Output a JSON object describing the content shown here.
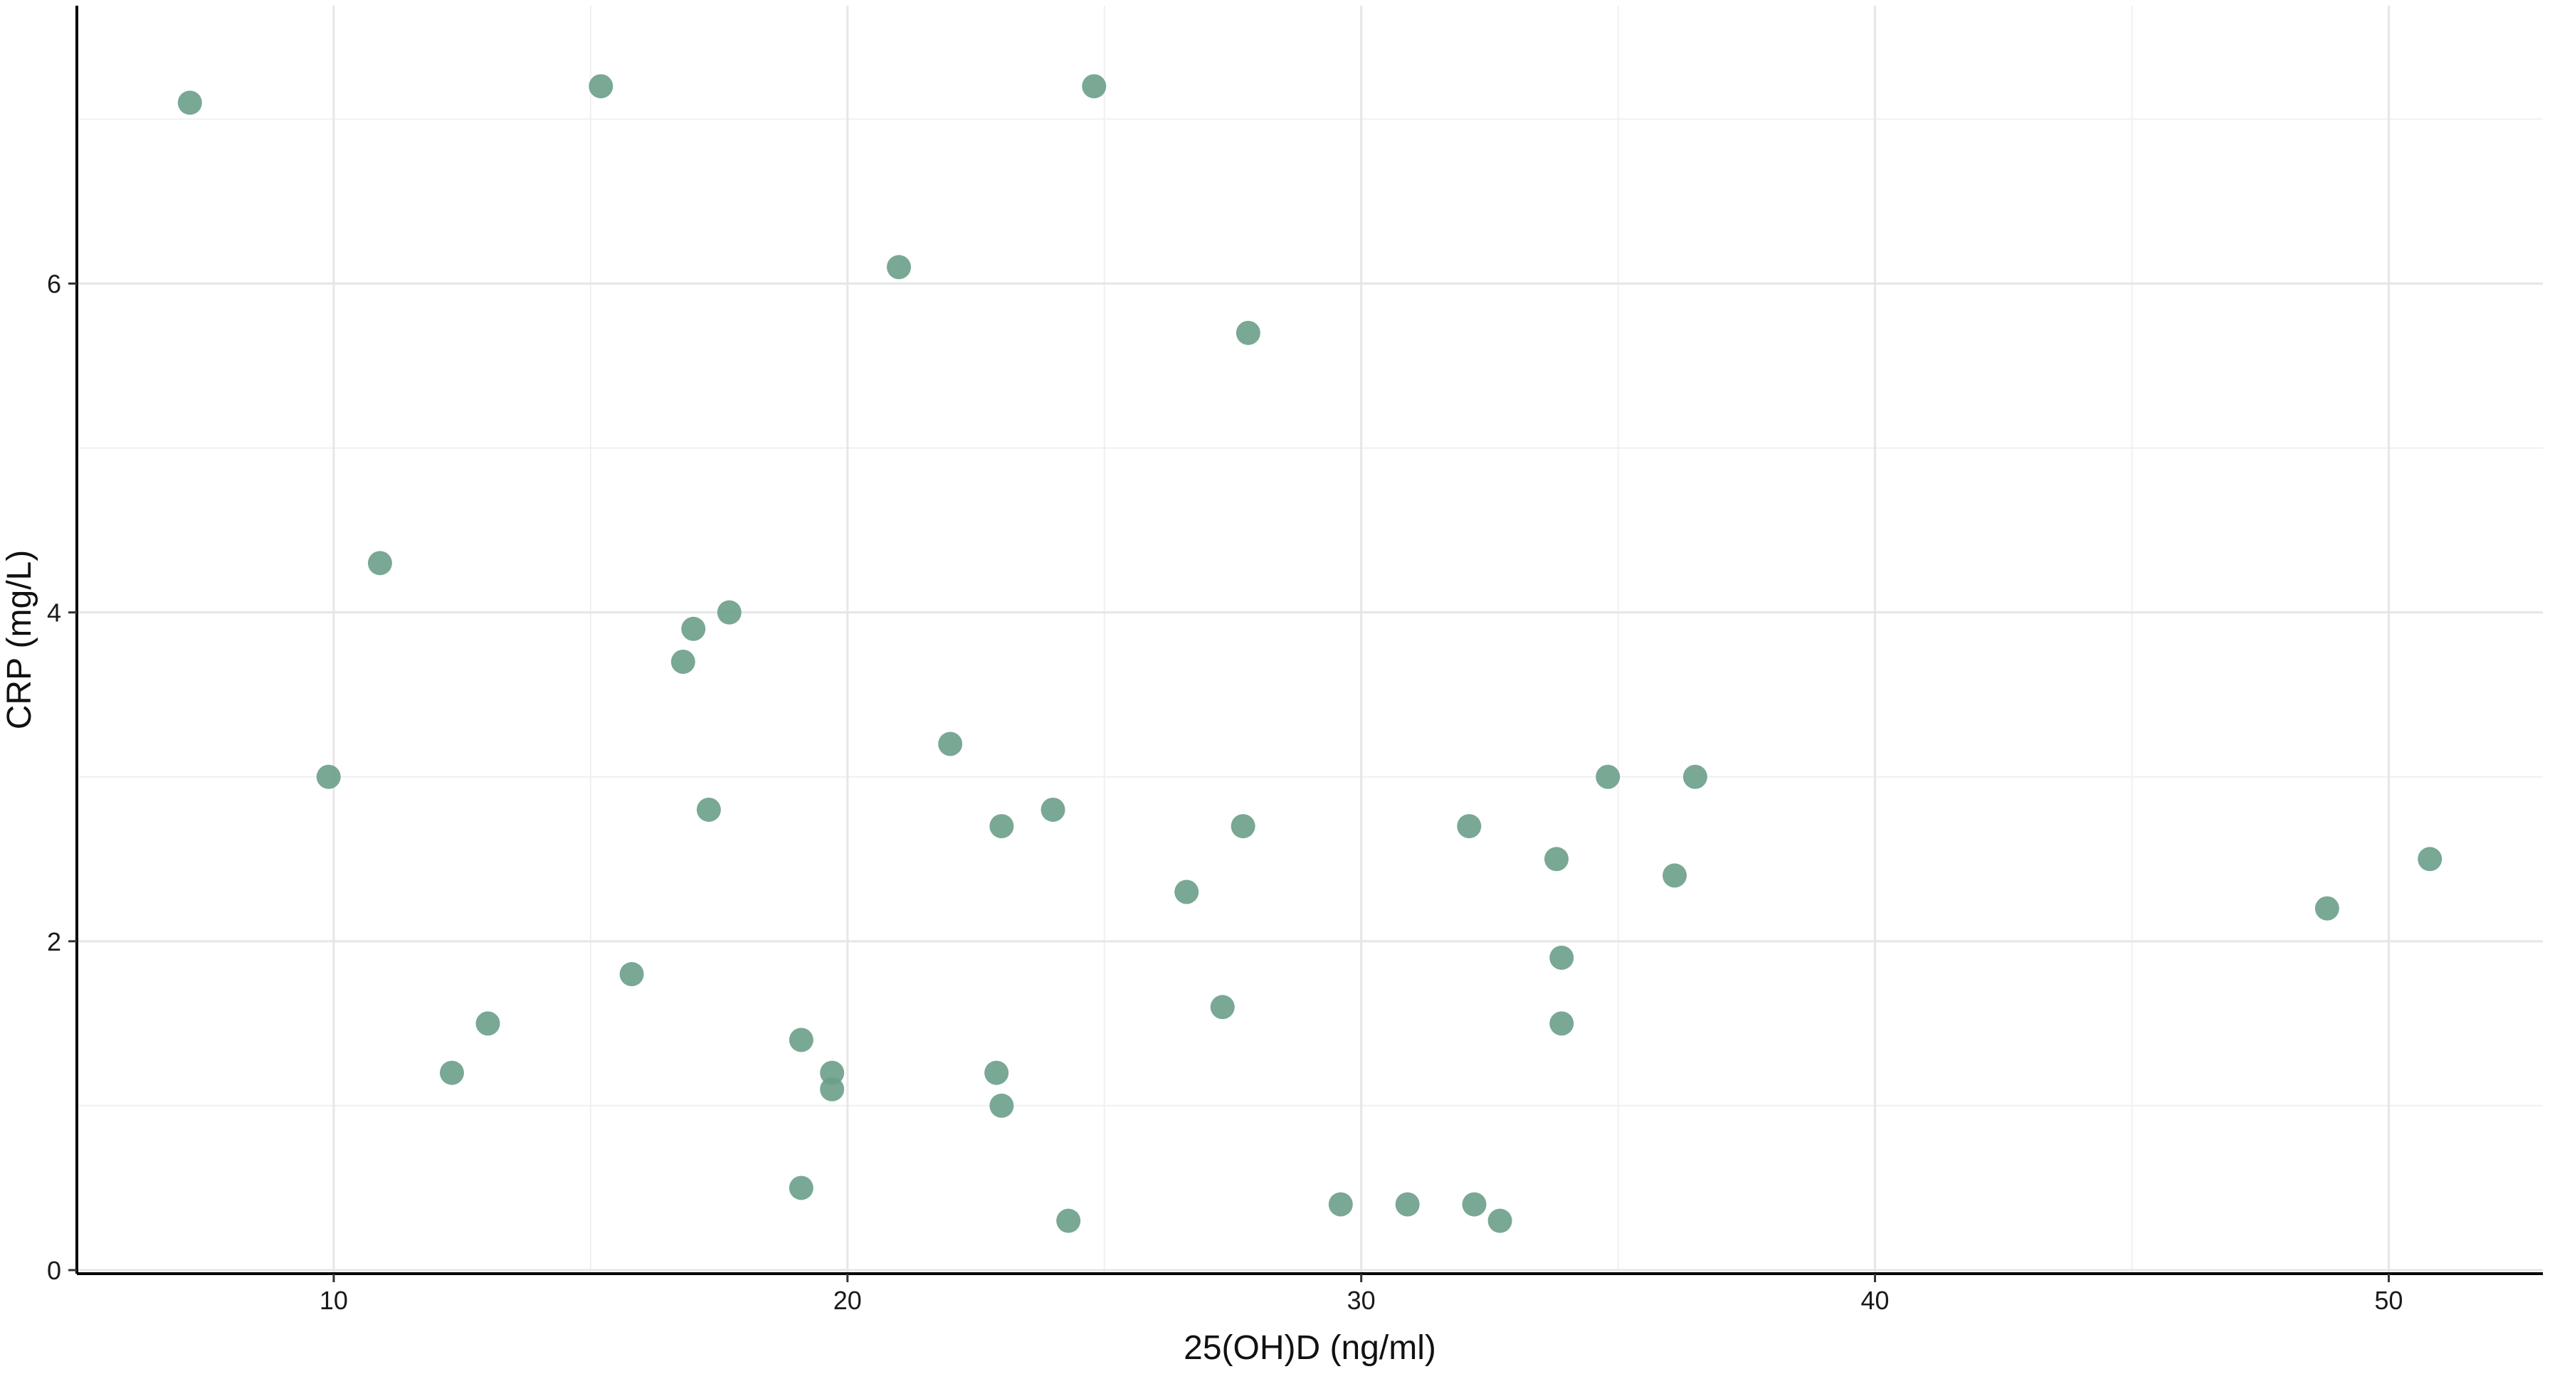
{
  "chart_data": {
    "type": "scatter",
    "title": "",
    "xlabel": "25(OH)D (ng/ml)",
    "ylabel": "CRP (mg/L)",
    "xlim": [
      5,
      53
    ],
    "ylim": [
      0,
      7.4
    ],
    "x_ticks": [
      10,
      20,
      30,
      40,
      50
    ],
    "x_tick_labels": [
      "10",
      "20",
      "30",
      "40",
      "50"
    ],
    "y_ticks": [
      0,
      2,
      4,
      6
    ],
    "y_tick_labels": [
      "0",
      "2",
      "4",
      "6"
    ],
    "x_minor": [
      15,
      25,
      35,
      45
    ],
    "y_minor": [
      1,
      3,
      5,
      7
    ],
    "grid": true,
    "point_color": "#6a9e89",
    "points": [
      {
        "x": 7.2,
        "y": 7.1
      },
      {
        "x": 15.2,
        "y": 7.2
      },
      {
        "x": 24.8,
        "y": 7.2
      },
      {
        "x": 21.0,
        "y": 6.1
      },
      {
        "x": 27.8,
        "y": 5.7
      },
      {
        "x": 10.9,
        "y": 4.3
      },
      {
        "x": 17.7,
        "y": 4.0
      },
      {
        "x": 17.0,
        "y": 3.9
      },
      {
        "x": 16.8,
        "y": 3.7
      },
      {
        "x": 22.0,
        "y": 3.2
      },
      {
        "x": 9.9,
        "y": 3.0
      },
      {
        "x": 34.8,
        "y": 3.0
      },
      {
        "x": 36.5,
        "y": 3.0
      },
      {
        "x": 17.3,
        "y": 2.8
      },
      {
        "x": 24.0,
        "y": 2.8
      },
      {
        "x": 23.0,
        "y": 2.7
      },
      {
        "x": 27.7,
        "y": 2.7
      },
      {
        "x": 32.1,
        "y": 2.7
      },
      {
        "x": 33.8,
        "y": 2.5
      },
      {
        "x": 50.8,
        "y": 2.5
      },
      {
        "x": 36.1,
        "y": 2.4
      },
      {
        "x": 26.6,
        "y": 2.3
      },
      {
        "x": 48.8,
        "y": 2.2
      },
      {
        "x": 33.9,
        "y": 1.9
      },
      {
        "x": 15.8,
        "y": 1.8
      },
      {
        "x": 27.3,
        "y": 1.6
      },
      {
        "x": 13.0,
        "y": 1.5
      },
      {
        "x": 33.9,
        "y": 1.5
      },
      {
        "x": 19.1,
        "y": 1.4
      },
      {
        "x": 12.3,
        "y": 1.2
      },
      {
        "x": 19.7,
        "y": 1.2
      },
      {
        "x": 22.9,
        "y": 1.2
      },
      {
        "x": 19.7,
        "y": 1.1
      },
      {
        "x": 23.0,
        "y": 1.0
      },
      {
        "x": 19.1,
        "y": 0.5
      },
      {
        "x": 29.6,
        "y": 0.4
      },
      {
        "x": 30.9,
        "y": 0.4
      },
      {
        "x": 32.2,
        "y": 0.4
      },
      {
        "x": 24.3,
        "y": 0.3
      },
      {
        "x": 32.7,
        "y": 0.3
      }
    ]
  }
}
